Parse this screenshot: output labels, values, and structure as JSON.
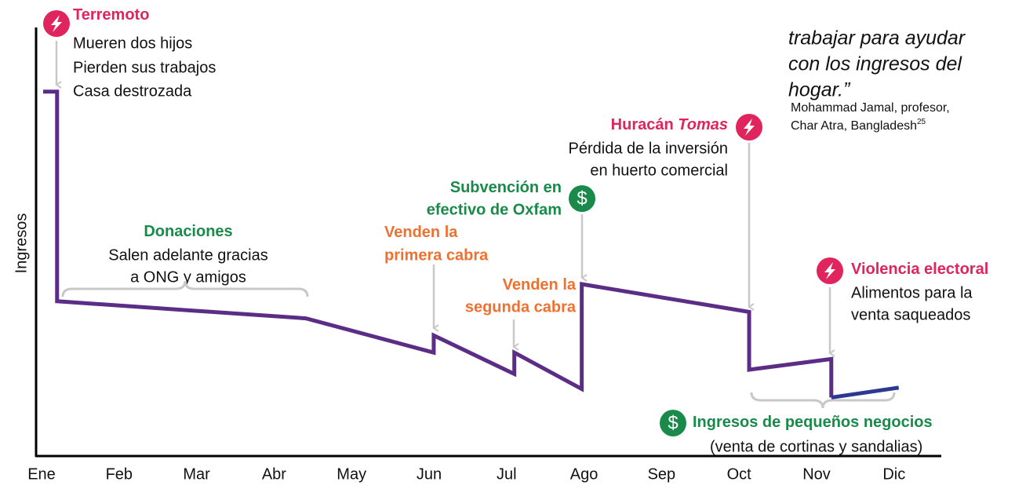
{
  "chart_data": {
    "type": "line",
    "ylabel": "Ingresos",
    "xlim": [
      0,
      11
    ],
    "xticks": [
      {
        "value": 0,
        "label": "Ene"
      },
      {
        "value": 1,
        "label": "Feb"
      },
      {
        "value": 2,
        "label": "Mar"
      },
      {
        "value": 3,
        "label": "Abr"
      },
      {
        "value": 4,
        "label": "May"
      },
      {
        "value": 5,
        "label": "Jun"
      },
      {
        "value": 6,
        "label": "Jul"
      },
      {
        "value": 7,
        "label": "Ago"
      },
      {
        "value": 8,
        "label": "Sep"
      },
      {
        "value": 9,
        "label": "Oct"
      },
      {
        "value": 10,
        "label": "Nov"
      },
      {
        "value": 11,
        "label": "Dic"
      }
    ],
    "ylim": [
      0,
      100
    ],
    "series": [
      {
        "color": "#5b2d86",
        "x": [
          0.02,
          0.2,
          0.2,
          3.41,
          5.06,
          5.06,
          6.1,
          6.1,
          6.97,
          6.97,
          9.13,
          9.13,
          10.19,
          10.19
        ],
        "values": [
          85,
          85,
          36,
          32,
          24,
          28,
          19,
          24,
          15.5,
          40,
          33.5,
          20,
          22.5,
          13.5
        ]
      },
      {
        "color": "#2b3990",
        "x": [
          10.19,
          11.06
        ],
        "values": [
          13.5,
          15.8
        ]
      }
    ],
    "annotations": [
      {
        "title": "Terremoto",
        "color": "#e0245e",
        "lines": [
          "Mueren dos hijos",
          "Pierden sus trabajos",
          "Casa destrozada"
        ]
      },
      {
        "title": "Donaciones",
        "color": "#1a8a4a",
        "lines": [
          "Salen adelante gracias",
          "a ONG y amigos"
        ]
      },
      {
        "title": "Venden la",
        "color": "#f07030",
        "lines": [
          "primera cabra"
        ]
      },
      {
        "title": "Venden la",
        "color": "#f07030",
        "lines": [
          "segunda cabra"
        ]
      },
      {
        "title": "Subvención en",
        "color": "#1a8a4a",
        "lines": [
          "efectivo de Oxfam"
        ],
        "icon": "$"
      },
      {
        "title": "Huracán",
        "title_em": "Tomas",
        "color": "#e0245e",
        "lines": [
          "Pérdida de la inversión",
          "en huerto comercial"
        ]
      },
      {
        "title": "Violencia electoral",
        "color": "#e0245e",
        "lines": [
          "Alimentos para la",
          "venta saqueados"
        ]
      },
      {
        "title": "Ingresos de pequeños negocios",
        "color": "#1a8a4a",
        "lines": [
          "(venta de cortinas y sandalias)"
        ],
        "icon": "$"
      }
    ],
    "quote": [
      "trabajar para ayudar",
      "con los ingresos del",
      "hogar.”"
    ],
    "attribution": [
      "Mohammad Jamal, profesor,",
      "Char Atra, Bangladesh"
    ],
    "footnote": "25"
  }
}
